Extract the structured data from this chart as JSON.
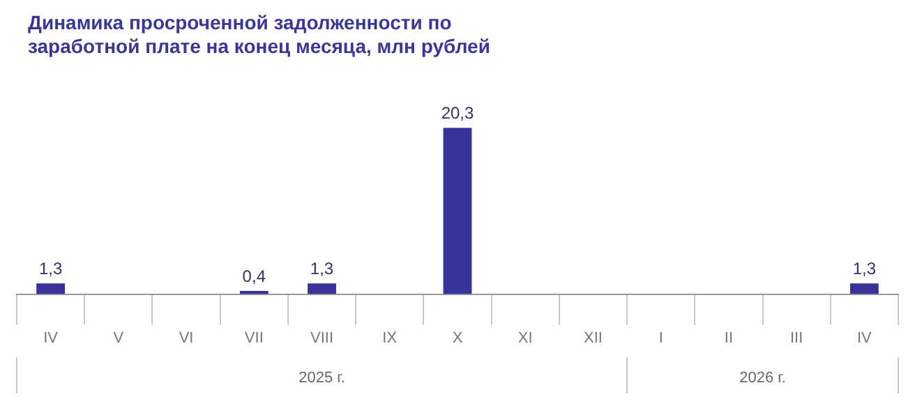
{
  "chart_data": {
    "type": "bar",
    "title": "Динамика просроченной задолженности по заработной плате на конец месяца, млн рублей",
    "categories": [
      "IV",
      "V",
      "VI",
      "VII",
      "VIII",
      "IX",
      "X",
      "XI",
      "XII",
      "I",
      "II",
      "III",
      "IV"
    ],
    "values": [
      1.3,
      null,
      null,
      0.4,
      1.3,
      null,
      20.3,
      null,
      null,
      null,
      null,
      null,
      1.3
    ],
    "value_labels": [
      "1,3",
      null,
      null,
      "0,4",
      "1,3",
      null,
      "20,3",
      null,
      null,
      null,
      null,
      null,
      "1,3"
    ],
    "color": "#38339a",
    "annotations": [
      "2025 г.",
      "2026 г."
    ],
    "legend": false,
    "grid": false
  }
}
